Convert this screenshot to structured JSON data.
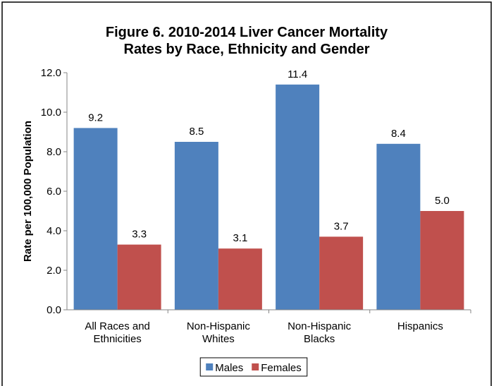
{
  "chart_data": {
    "type": "bar",
    "title": "Figure 6.  2010-2014 Liver Cancer Mortality\nRates by Race, Ethnicity and Gender",
    "ylabel": "Rate per 100,000 Population",
    "categories": [
      "All Races and\nEthnicities",
      "Non-Hispanic\nWhites",
      "Non-Hispanic\nBlacks",
      "Hispanics"
    ],
    "series": [
      {
        "name": "Males",
        "color": "#4f81bd",
        "values": [
          9.2,
          8.5,
          11.4,
          8.4
        ],
        "value_labels": [
          "9.2",
          "8.5",
          "11.4",
          "8.4"
        ]
      },
      {
        "name": "Females",
        "color": "#c0504d",
        "values": [
          3.3,
          3.1,
          3.7,
          5.0
        ],
        "value_labels": [
          "3.3",
          "3.1",
          "3.7",
          "5.0"
        ]
      }
    ],
    "ylim": [
      0,
      12
    ],
    "yticks": [
      {
        "value": 0,
        "label": "0.0"
      },
      {
        "value": 2,
        "label": "2.0"
      },
      {
        "value": 4,
        "label": "4.0"
      },
      {
        "value": 6,
        "label": "6.0"
      },
      {
        "value": 8,
        "label": "8.0"
      },
      {
        "value": 10,
        "label": "10.0"
      },
      {
        "value": 12,
        "label": "12.0"
      }
    ],
    "legend": "bottom"
  }
}
